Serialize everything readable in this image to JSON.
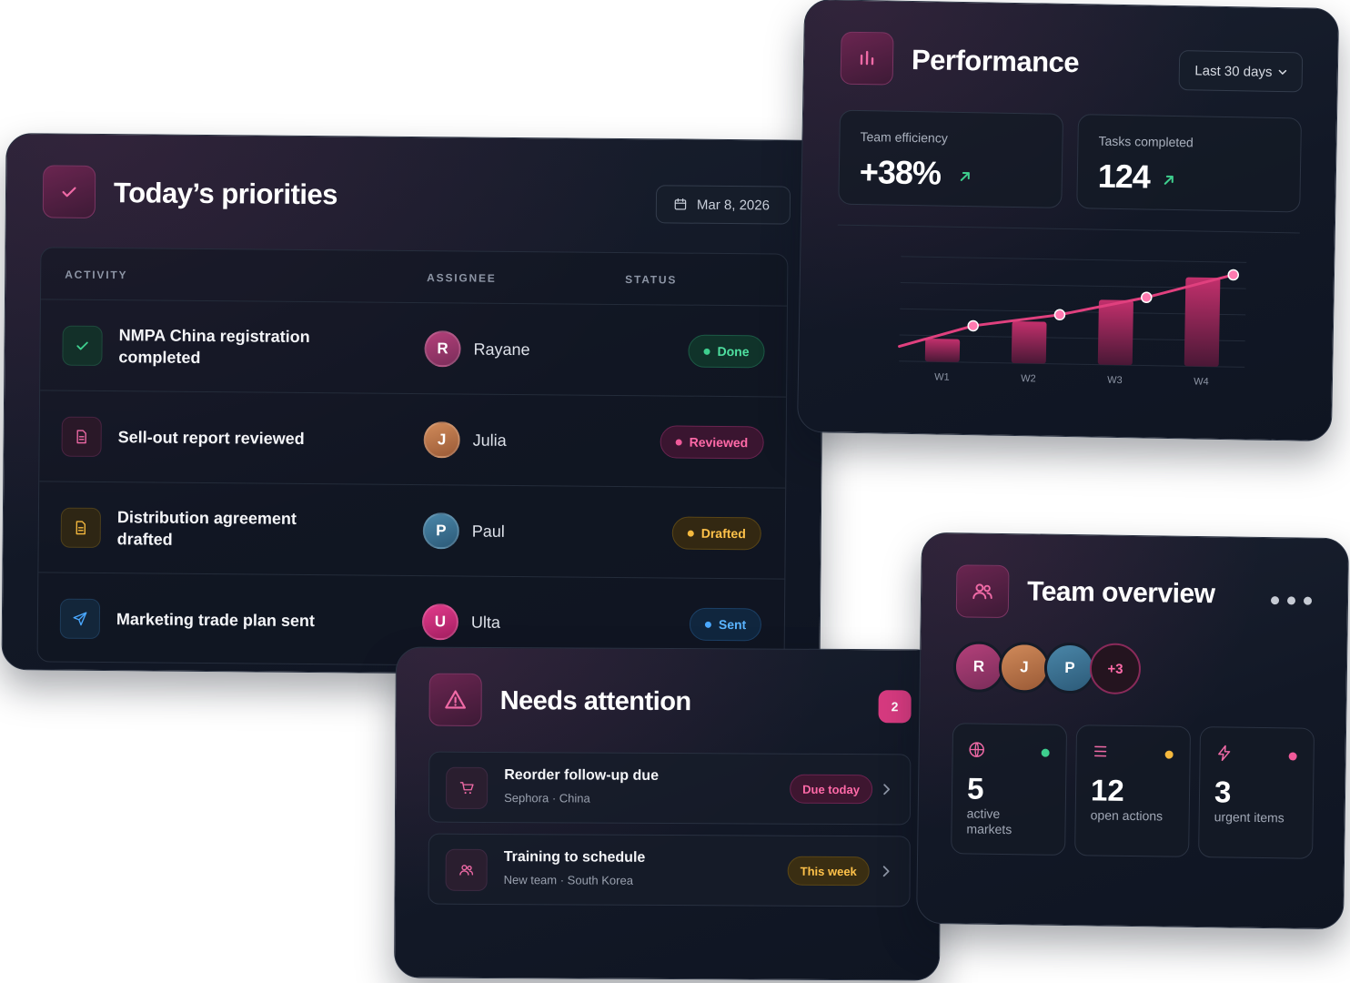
{
  "priorities": {
    "title": "Today’s priorities",
    "date": "Mar 8, 2026",
    "columns": {
      "activity": "ACTIVITY",
      "assignee": "ASSIGNEE",
      "status": "STATUS"
    },
    "rows": [
      {
        "title": "NMPA China registration completed",
        "icon": "check-icon",
        "assignee": "Rayane",
        "initial": "R",
        "status": "Done",
        "status_color": "#3ecf8e"
      },
      {
        "title": "Sell-out report reviewed",
        "icon": "document-icon",
        "assignee": "Julia",
        "initial": "J",
        "status": "Reviewed",
        "status_color": "#f05a9a"
      },
      {
        "title": "Distribution agreement drafted",
        "icon": "document-icon",
        "assignee": "Paul",
        "initial": "P",
        "status": "Drafted",
        "status_color": "#f5b93e"
      },
      {
        "title": "Marketing trade plan sent",
        "icon": "send-icon",
        "assignee": "Ulta",
        "initial": "U",
        "status": "Sent",
        "status_color": "#4aa8ff"
      }
    ]
  },
  "performance": {
    "title": "Performance",
    "range": "Last 30 days",
    "stats": [
      {
        "label": "Team efficiency",
        "value": "+38%"
      },
      {
        "label": "Tasks completed",
        "value": "124"
      }
    ]
  },
  "chart_data": {
    "type": "bar",
    "categories": [
      "W1",
      "W2",
      "W3",
      "W4"
    ],
    "values": [
      22,
      40,
      62,
      85
    ],
    "series": [
      {
        "type": "bar",
        "values": [
          22,
          40,
          62,
          85
        ]
      },
      {
        "type": "line",
        "values": [
          35,
          47,
          65,
          88
        ]
      }
    ],
    "ylim": [
      0,
      100
    ],
    "grid": true,
    "accent": "#e0407e"
  },
  "attention": {
    "title": "Needs attention",
    "count": "2",
    "items": [
      {
        "title": "Reorder follow-up due",
        "sub": "Sephora · China",
        "tag": "Due today",
        "icon": "cart-icon"
      },
      {
        "title": "Training to schedule",
        "sub": "New team · South Korea",
        "tag": "This week",
        "icon": "people-icon"
      }
    ]
  },
  "team": {
    "title": "Team overview",
    "avatars": [
      "R",
      "J",
      "P"
    ],
    "more": "+3",
    "stats": [
      {
        "value": "5",
        "label": "active markets",
        "icon": "globe-icon",
        "dot": "#3ecf8e"
      },
      {
        "value": "12",
        "label": "open actions",
        "icon": "list-icon",
        "dot": "#f5b93e"
      },
      {
        "value": "3",
        "label": "urgent items",
        "icon": "bolt-icon",
        "dot": "#f05a9a"
      }
    ]
  }
}
